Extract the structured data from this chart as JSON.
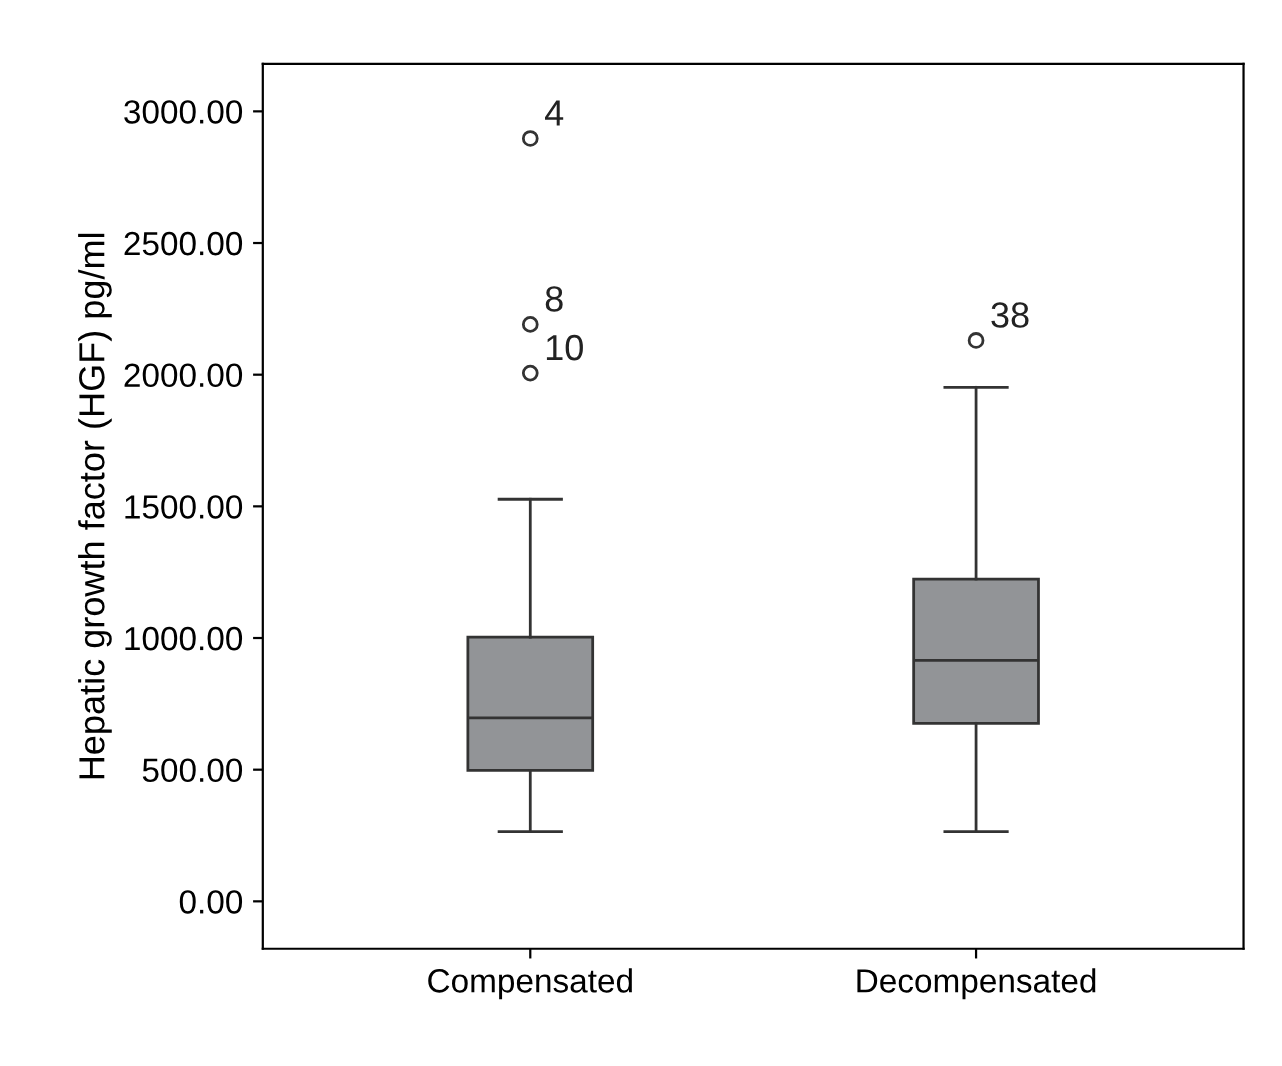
{
  "chart_data": {
    "type": "box",
    "ylabel": "Hepatic growth factor (HGF) pg/ml",
    "categories": [
      "Compensated",
      "Decompensated"
    ],
    "color": "#929497",
    "boxes": [
      {
        "low": 265,
        "q1": 497,
        "median": 697,
        "q3": 1003,
        "high": 1527,
        "outliers": [
          2897,
          2191,
          2006
        ]
      },
      {
        "low": 265,
        "q1": 676,
        "median": 915,
        "q3": 1224,
        "high": 1952,
        "outliers": [
          2130
        ]
      }
    ],
    "annotations": [
      "4",
      "8",
      "10",
      "38"
    ],
    "ylim": [
      -180,
      3180
    ],
    "yticks": [
      {
        "value": 0,
        "label": "0.00"
      },
      {
        "value": 500,
        "label": "500.00"
      },
      {
        "value": 1000,
        "label": "1000.00"
      },
      {
        "value": 1500,
        "label": "1500.00"
      },
      {
        "value": 2000,
        "label": "2000.00"
      },
      {
        "value": 2500,
        "label": "2500.00"
      },
      {
        "value": 3000,
        "label": "3000.00"
      }
    ],
    "grid": false
  }
}
